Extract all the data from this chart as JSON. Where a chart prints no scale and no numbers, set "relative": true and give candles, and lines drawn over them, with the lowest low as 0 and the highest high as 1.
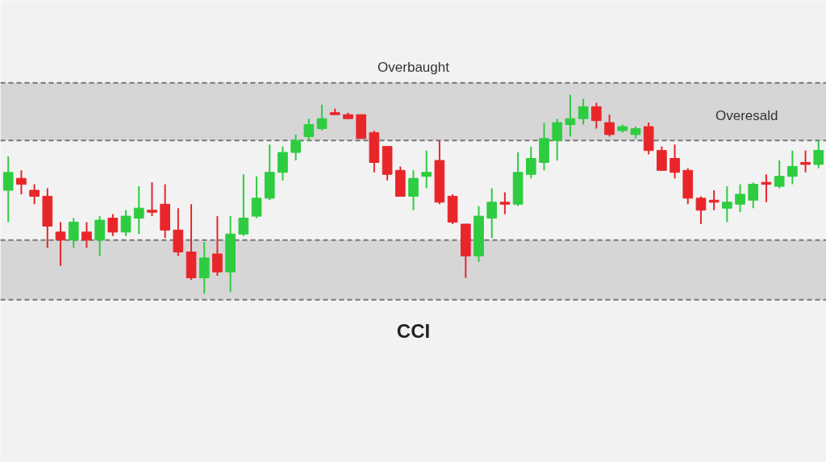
{
  "chart_data": {
    "type": "candlestick",
    "relative": true,
    "xlabel": "CCI",
    "grid": false,
    "categories": [
      null,
      null,
      null,
      null,
      null,
      null,
      null,
      null,
      null,
      null,
      null,
      null,
      null,
      null,
      null,
      null,
      null,
      null,
      null,
      null,
      null,
      null,
      null,
      null,
      null,
      null,
      null,
      null,
      null,
      null,
      null,
      null,
      null,
      null,
      null,
      null,
      null,
      null,
      null,
      null,
      null,
      null,
      null,
      null,
      null,
      null,
      null,
      null,
      null,
      null,
      null,
      null,
      null,
      null,
      null,
      null,
      null,
      null,
      null,
      null,
      null,
      null,
      null
    ],
    "ohlc": [
      [
        0.52,
        0.69,
        0.36,
        0.61
      ],
      [
        0.58,
        0.62,
        0.5,
        0.55
      ],
      [
        0.52,
        0.55,
        0.45,
        0.49
      ],
      [
        0.49,
        0.53,
        0.23,
        0.34
      ],
      [
        0.31,
        0.36,
        0.14,
        0.27
      ],
      [
        0.27,
        0.38,
        0.23,
        0.36
      ],
      [
        0.31,
        0.36,
        0.23,
        0.27
      ],
      [
        0.27,
        0.39,
        0.19,
        0.37
      ],
      [
        0.38,
        0.4,
        0.29,
        0.31
      ],
      [
        0.31,
        0.42,
        0.29,
        0.39
      ],
      [
        0.38,
        0.54,
        0.3,
        0.43
      ],
      [
        0.42,
        0.56,
        0.39,
        0.41
      ],
      [
        0.45,
        0.55,
        0.28,
        0.32
      ],
      [
        0.32,
        0.43,
        0.19,
        0.21
      ],
      [
        0.21,
        0.45,
        0.07,
        0.08
      ],
      [
        0.08,
        0.26,
        0.0,
        0.18
      ],
      [
        0.2,
        0.39,
        0.09,
        0.11
      ],
      [
        0.11,
        0.39,
        0.01,
        0.3
      ],
      [
        0.3,
        0.6,
        0.29,
        0.38
      ],
      [
        0.39,
        0.59,
        0.38,
        0.48
      ],
      [
        0.48,
        0.75,
        0.47,
        0.61
      ],
      [
        0.61,
        0.74,
        0.57,
        0.71
      ],
      [
        0.71,
        0.8,
        0.67,
        0.77
      ],
      [
        0.79,
        0.88,
        0.77,
        0.85
      ],
      [
        0.83,
        0.95,
        0.82,
        0.88
      ],
      [
        0.91,
        0.93,
        0.9,
        0.9
      ],
      [
        0.9,
        0.91,
        0.88,
        0.88
      ],
      [
        0.9,
        0.9,
        0.78,
        0.78
      ],
      [
        0.81,
        0.82,
        0.61,
        0.66
      ],
      [
        0.74,
        0.74,
        0.57,
        0.6
      ],
      [
        0.62,
        0.64,
        0.49,
        0.49
      ],
      [
        0.49,
        0.62,
        0.42,
        0.58
      ],
      [
        0.59,
        0.72,
        0.53,
        0.61
      ],
      [
        0.67,
        0.77,
        0.45,
        0.46
      ],
      [
        0.49,
        0.5,
        0.35,
        0.36
      ],
      [
        0.35,
        0.35,
        0.08,
        0.19
      ],
      [
        0.19,
        0.44,
        0.16,
        0.39
      ],
      [
        0.38,
        0.53,
        0.28,
        0.46
      ],
      [
        0.46,
        0.51,
        0.4,
        0.45
      ],
      [
        0.45,
        0.71,
        0.44,
        0.61
      ],
      [
        0.6,
        0.74,
        0.58,
        0.68
      ],
      [
        0.66,
        0.86,
        0.62,
        0.78
      ],
      [
        0.77,
        0.88,
        0.67,
        0.86
      ],
      [
        0.85,
        1.0,
        0.79,
        0.88
      ],
      [
        0.88,
        0.98,
        0.85,
        0.94
      ],
      [
        0.94,
        0.96,
        0.83,
        0.87
      ],
      [
        0.86,
        0.9,
        0.79,
        0.8
      ],
      [
        0.82,
        0.85,
        0.81,
        0.84
      ],
      [
        0.8,
        0.84,
        0.78,
        0.83
      ],
      [
        0.84,
        0.86,
        0.7,
        0.72
      ],
      [
        0.72,
        0.74,
        0.62,
        0.62
      ],
      [
        0.68,
        0.75,
        0.58,
        0.61
      ],
      [
        0.62,
        0.63,
        0.45,
        0.48
      ],
      [
        0.48,
        0.49,
        0.35,
        0.42
      ],
      [
        0.47,
        0.52,
        0.42,
        0.46
      ],
      [
        0.43,
        0.54,
        0.36,
        0.46
      ],
      [
        0.45,
        0.55,
        0.41,
        0.5
      ],
      [
        0.47,
        0.56,
        0.43,
        0.55
      ],
      [
        0.56,
        0.6,
        0.46,
        0.55
      ],
      [
        0.54,
        0.67,
        0.53,
        0.59
      ],
      [
        0.59,
        0.72,
        0.55,
        0.64
      ],
      [
        0.66,
        0.72,
        0.61,
        0.65
      ],
      [
        0.65,
        0.77,
        0.63,
        0.72
      ]
    ],
    "colors": [
      "#2ecc40",
      "#e8262a",
      "#e8262a",
      "#e8262a",
      "#e8262a",
      "#2ecc40",
      "#e8262a",
      "#2ecc40",
      "#e8262a",
      "#2ecc40",
      "#2ecc40",
      "#e8262a",
      "#e8262a",
      "#e8262a",
      "#e8262a",
      "#2ecc40",
      "#e8262a",
      "#2ecc40",
      "#2ecc40",
      "#2ecc40",
      "#2ecc40",
      "#2ecc40",
      "#2ecc40",
      "#2ecc40",
      "#2ecc40",
      "#e8262a",
      "#e8262a",
      "#e8262a",
      "#e8262a",
      "#e8262a",
      "#e8262a",
      "#2ecc40",
      "#2ecc40",
      "#e8262a",
      "#e8262a",
      "#e8262a",
      "#2ecc40",
      "#2ecc40",
      "#e8262a",
      "#2ecc40",
      "#2ecc40",
      "#2ecc40",
      "#2ecc40",
      "#2ecc40",
      "#2ecc40",
      "#e8262a",
      "#e8262a",
      "#2ecc40",
      "#2ecc40",
      "#e8262a",
      "#e8262a",
      "#e8262a",
      "#e8262a",
      "#e8262a",
      "#e8262a",
      "#2ecc40",
      "#2ecc40",
      "#2ecc40",
      "#e8262a",
      "#2ecc40",
      "#2ecc40",
      "#e8262a",
      "#2ecc40"
    ],
    "bands": [
      {
        "axis": "y",
        "from": 0.77,
        "to": 1.06,
        "label": "Overbaught",
        "color": "#d6d6d6"
      },
      {
        "axis": "y",
        "from": -0.03,
        "to": 0.27,
        "color": "#d6d6d6"
      }
    ],
    "ref_lines": [
      {
        "axis": "y",
        "value": 1.06,
        "color": "#777777",
        "line_style": "dashed"
      },
      {
        "axis": "y",
        "value": 0.77,
        "color": "#777777",
        "line_style": "dashed"
      },
      {
        "axis": "y",
        "value": 0.27,
        "color": "#777777",
        "line_style": "dashed"
      },
      {
        "axis": "y",
        "value": -0.03,
        "color": "#777777",
        "line_style": "dashed"
      }
    ],
    "annotations": [
      "Overesald"
    ]
  }
}
